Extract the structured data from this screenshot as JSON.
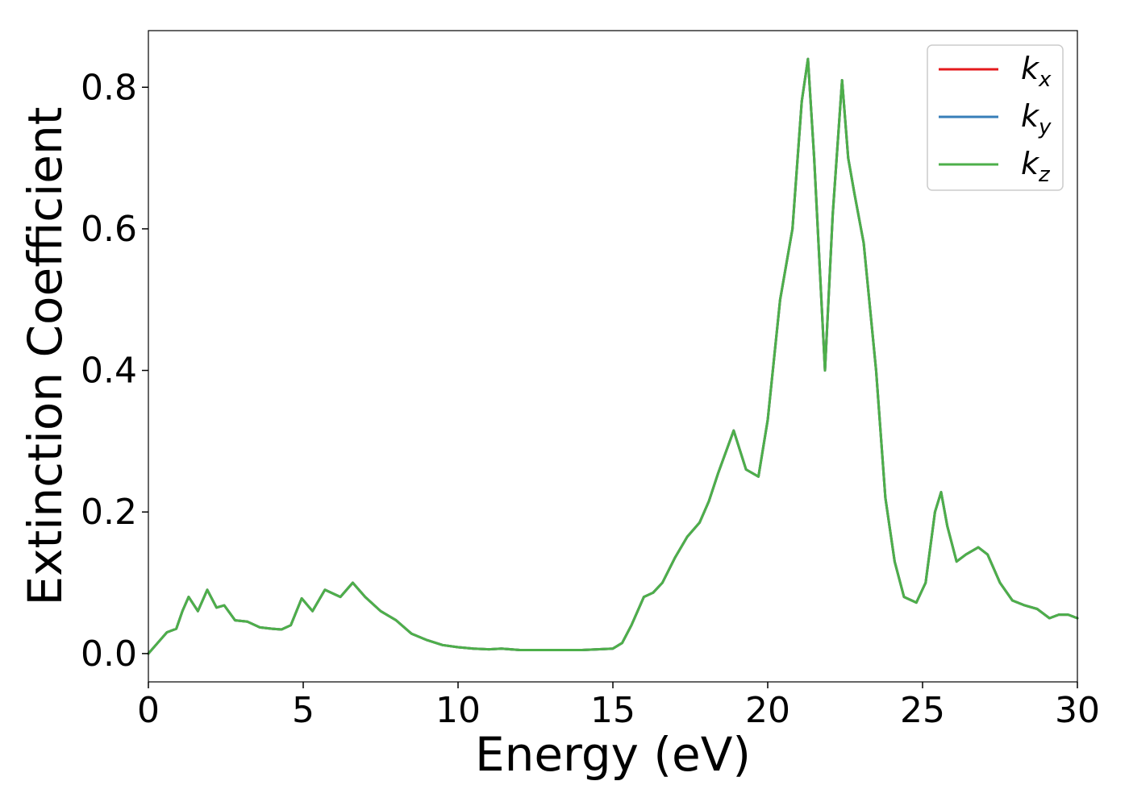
{
  "chart_data": {
    "type": "line",
    "title": "",
    "xlabel": "Energy (eV)",
    "ylabel": "Extinction Coefficient",
    "xlim": [
      0,
      30
    ],
    "ylim": [
      -0.04,
      0.88
    ],
    "grid": false,
    "legend_position": "top-right",
    "x_ticks": [
      {
        "value": 0,
        "label": "0"
      },
      {
        "value": 5,
        "label": "5"
      },
      {
        "value": 10,
        "label": "10"
      },
      {
        "value": 15,
        "label": "15"
      },
      {
        "value": 20,
        "label": "20"
      },
      {
        "value": 25,
        "label": "25"
      },
      {
        "value": 30,
        "label": "30"
      }
    ],
    "y_ticks": [
      {
        "value": 0.0,
        "label": "0.0"
      },
      {
        "value": 0.2,
        "label": "0.2"
      },
      {
        "value": 0.4,
        "label": "0.4"
      },
      {
        "value": 0.6,
        "label": "0.6"
      },
      {
        "value": 0.8,
        "label": "0.8"
      }
    ],
    "x": [
      0.0,
      0.3,
      0.6,
      0.9,
      1.1,
      1.3,
      1.6,
      1.9,
      2.2,
      2.45,
      2.8,
      3.2,
      3.6,
      4.0,
      4.3,
      4.6,
      4.95,
      5.3,
      5.7,
      6.2,
      6.6,
      7.0,
      7.5,
      8.0,
      8.5,
      9.0,
      9.5,
      10.0,
      10.5,
      11.0,
      11.4,
      12.0,
      13.0,
      14.0,
      15.0,
      15.3,
      15.6,
      16.0,
      16.3,
      16.6,
      17.0,
      17.4,
      17.8,
      18.1,
      18.4,
      18.9,
      19.3,
      19.7,
      20.0,
      20.4,
      20.8,
      21.1,
      21.3,
      21.5,
      21.85,
      22.1,
      22.4,
      22.6,
      22.8,
      23.1,
      23.5,
      23.8,
      24.1,
      24.4,
      24.8,
      25.1,
      25.4,
      25.6,
      25.8,
      26.1,
      26.4,
      26.8,
      27.1,
      27.5,
      27.9,
      28.3,
      28.7,
      29.1,
      29.4,
      29.7,
      30.0
    ],
    "series": [
      {
        "name": "k_x",
        "label_main": "k",
        "label_sub": "x",
        "color": "#e41a1c",
        "values": [
          0.0,
          0.015,
          0.03,
          0.035,
          0.06,
          0.08,
          0.06,
          0.09,
          0.065,
          0.068,
          0.047,
          0.045,
          0.037,
          0.035,
          0.034,
          0.04,
          0.078,
          0.06,
          0.09,
          0.08,
          0.1,
          0.08,
          0.06,
          0.047,
          0.028,
          0.019,
          0.012,
          0.009,
          0.007,
          0.006,
          0.007,
          0.005,
          0.005,
          0.005,
          0.007,
          0.015,
          0.04,
          0.08,
          0.086,
          0.1,
          0.135,
          0.165,
          0.185,
          0.215,
          0.255,
          0.315,
          0.26,
          0.25,
          0.33,
          0.5,
          0.6,
          0.78,
          0.84,
          0.7,
          0.4,
          0.62,
          0.81,
          0.7,
          0.65,
          0.58,
          0.4,
          0.22,
          0.13,
          0.08,
          0.072,
          0.1,
          0.2,
          0.228,
          0.18,
          0.13,
          0.14,
          0.15,
          0.14,
          0.1,
          0.075,
          0.068,
          0.063,
          0.05,
          0.055,
          0.055,
          0.05
        ]
      },
      {
        "name": "k_y",
        "label_main": "k",
        "label_sub": "y",
        "color": "#377eb8",
        "values": [
          0.0,
          0.015,
          0.03,
          0.035,
          0.06,
          0.08,
          0.06,
          0.09,
          0.065,
          0.068,
          0.047,
          0.045,
          0.037,
          0.035,
          0.034,
          0.04,
          0.078,
          0.06,
          0.09,
          0.08,
          0.1,
          0.08,
          0.06,
          0.047,
          0.028,
          0.019,
          0.012,
          0.009,
          0.007,
          0.006,
          0.007,
          0.005,
          0.005,
          0.005,
          0.007,
          0.015,
          0.04,
          0.08,
          0.086,
          0.1,
          0.135,
          0.165,
          0.185,
          0.215,
          0.255,
          0.315,
          0.26,
          0.25,
          0.33,
          0.5,
          0.6,
          0.78,
          0.84,
          0.7,
          0.4,
          0.62,
          0.81,
          0.7,
          0.65,
          0.58,
          0.4,
          0.22,
          0.13,
          0.08,
          0.072,
          0.1,
          0.2,
          0.228,
          0.18,
          0.13,
          0.14,
          0.15,
          0.14,
          0.1,
          0.075,
          0.068,
          0.063,
          0.05,
          0.055,
          0.055,
          0.05
        ]
      },
      {
        "name": "k_z",
        "label_main": "k",
        "label_sub": "z",
        "color": "#4daf4a",
        "values": [
          0.0,
          0.015,
          0.03,
          0.035,
          0.06,
          0.08,
          0.06,
          0.09,
          0.065,
          0.068,
          0.047,
          0.045,
          0.037,
          0.035,
          0.034,
          0.04,
          0.078,
          0.06,
          0.09,
          0.08,
          0.1,
          0.08,
          0.06,
          0.047,
          0.028,
          0.019,
          0.012,
          0.009,
          0.007,
          0.006,
          0.007,
          0.005,
          0.005,
          0.005,
          0.007,
          0.015,
          0.04,
          0.08,
          0.086,
          0.1,
          0.135,
          0.165,
          0.185,
          0.215,
          0.255,
          0.315,
          0.26,
          0.25,
          0.33,
          0.5,
          0.6,
          0.78,
          0.84,
          0.7,
          0.4,
          0.62,
          0.81,
          0.7,
          0.65,
          0.58,
          0.4,
          0.22,
          0.13,
          0.08,
          0.072,
          0.1,
          0.2,
          0.228,
          0.18,
          0.13,
          0.14,
          0.15,
          0.14,
          0.1,
          0.075,
          0.068,
          0.063,
          0.05,
          0.055,
          0.055,
          0.05
        ]
      }
    ]
  }
}
